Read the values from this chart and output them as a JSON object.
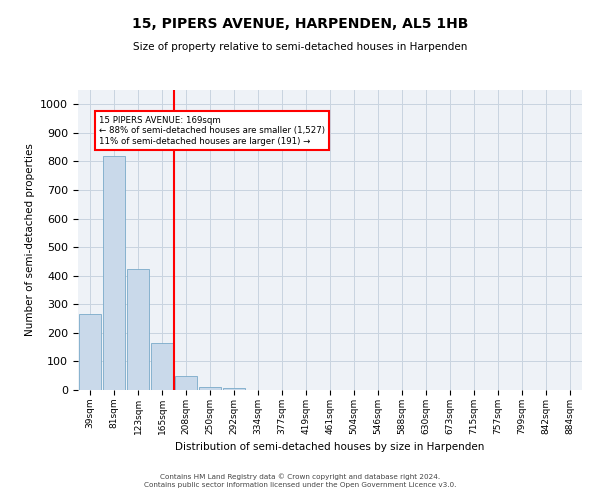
{
  "title": "15, PIPERS AVENUE, HARPENDEN, AL5 1HB",
  "subtitle": "Size of property relative to semi-detached houses in Harpenden",
  "xlabel": "Distribution of semi-detached houses by size in Harpenden",
  "ylabel": "Number of semi-detached properties",
  "categories": [
    "39sqm",
    "81sqm",
    "123sqm",
    "165sqm",
    "208sqm",
    "250sqm",
    "292sqm",
    "334sqm",
    "377sqm",
    "419sqm",
    "461sqm",
    "504sqm",
    "546sqm",
    "588sqm",
    "630sqm",
    "673sqm",
    "715sqm",
    "757sqm",
    "799sqm",
    "842sqm",
    "884sqm"
  ],
  "values": [
    265,
    820,
    422,
    165,
    50,
    12,
    7,
    0,
    0,
    0,
    0,
    0,
    0,
    0,
    0,
    0,
    0,
    0,
    0,
    0,
    0
  ],
  "bar_color": "#c9d9ea",
  "bar_edge_color": "#7aaac9",
  "property_line_x": 3.5,
  "annotation_text_line1": "15 PIPERS AVENUE: 169sqm",
  "annotation_text_line2": "← 88% of semi-detached houses are smaller (1,527)",
  "annotation_text_line3": "11% of semi-detached houses are larger (191) →",
  "ylim": [
    0,
    1050
  ],
  "yticks": [
    0,
    100,
    200,
    300,
    400,
    500,
    600,
    700,
    800,
    900,
    1000
  ],
  "grid_color": "#c8d4e0",
  "bg_color": "#eef2f7",
  "footer_line1": "Contains HM Land Registry data © Crown copyright and database right 2024.",
  "footer_line2": "Contains public sector information licensed under the Open Government Licence v3.0."
}
